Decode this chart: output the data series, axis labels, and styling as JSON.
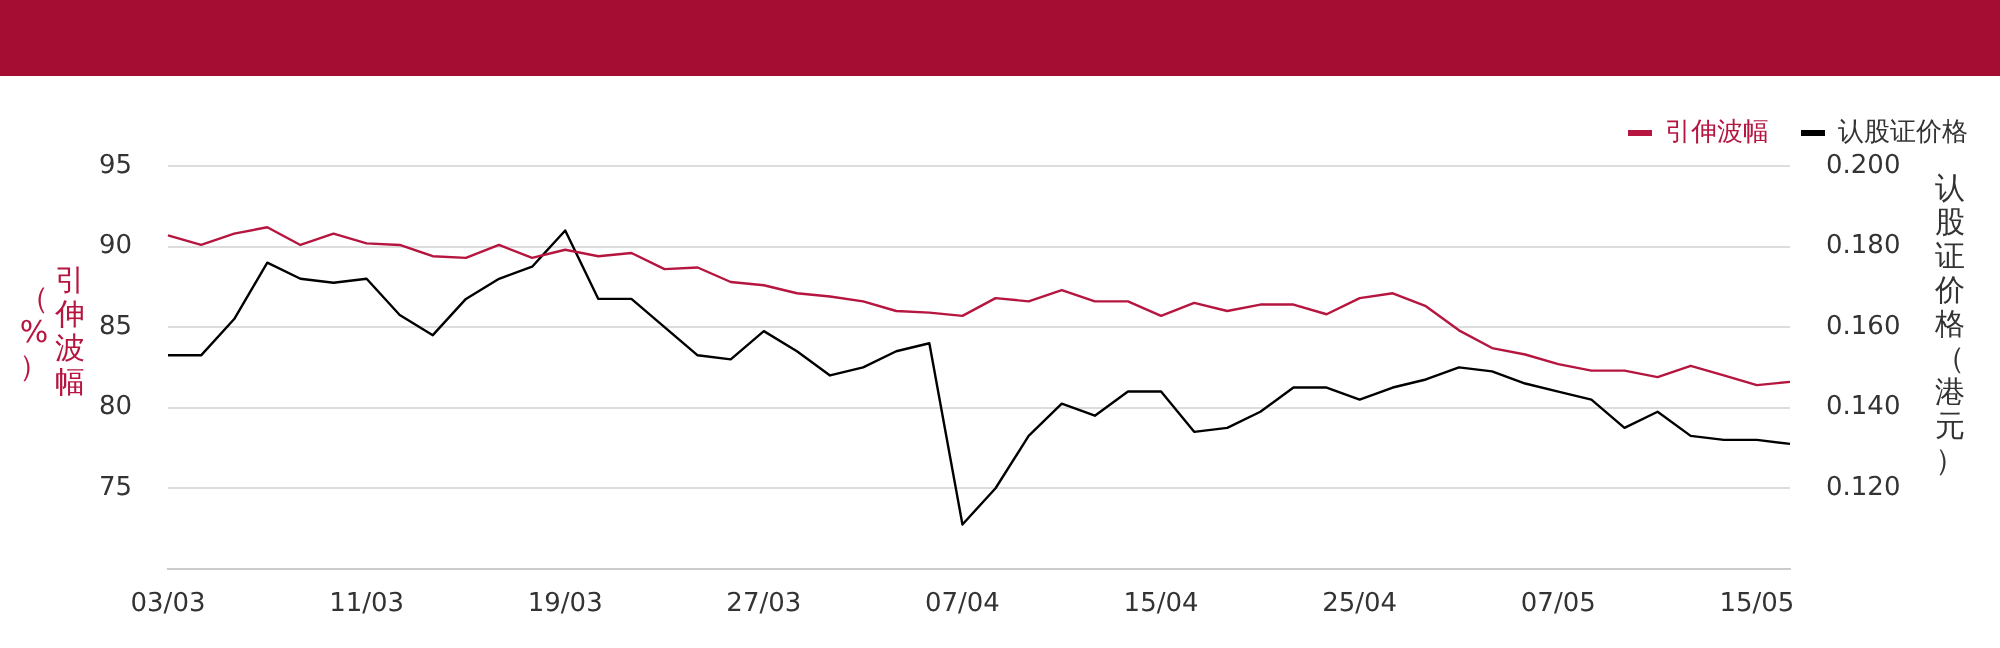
{
  "chart_data": {
    "type": "line",
    "ylabel": "引伸波幅（%）",
    "y2label": "认股证价格（港元）",
    "categories": [
      "03/03",
      null,
      null,
      null,
      null,
      null,
      "11/03",
      null,
      null,
      null,
      null,
      null,
      "19/03",
      null,
      null,
      null,
      null,
      null,
      "27/03",
      null,
      null,
      null,
      null,
      null,
      "07/04",
      null,
      null,
      null,
      null,
      null,
      "15/04",
      null,
      null,
      null,
      null,
      null,
      "25/04",
      null,
      null,
      null,
      null,
      null,
      "07/05",
      null,
      null,
      null,
      null,
      null,
      "15/05",
      null
    ],
    "series": [
      {
        "name": "引伸波幅",
        "color": "#b5153f",
        "values": [
          90.7,
          90.1,
          90.8,
          91.2,
          90.1,
          90.8,
          90.2,
          90.1,
          89.4,
          89.3,
          90.1,
          89.3,
          89.8,
          89.4,
          89.6,
          88.6,
          88.7,
          87.8,
          87.6,
          87.1,
          86.9,
          86.6,
          86.0,
          85.9,
          85.7,
          86.8,
          86.6,
          87.3,
          86.6,
          86.6,
          85.7,
          86.5,
          86.0,
          86.4,
          86.4,
          85.8,
          86.8,
          87.1,
          86.3,
          84.8,
          83.7,
          83.3,
          82.7,
          82.3,
          82.3,
          81.9,
          82.6,
          82.0,
          81.4,
          81.6
        ]
      },
      {
        "name": "认股证价格",
        "color": "#000000",
        "axis": "y2",
        "values": [
          0.153,
          0.153,
          0.162,
          0.176,
          0.172,
          0.171,
          0.172,
          0.163,
          0.158,
          0.167,
          0.172,
          0.175,
          0.184,
          0.167,
          0.167,
          0.16,
          0.153,
          0.152,
          0.159,
          0.154,
          0.148,
          0.15,
          0.154,
          0.156,
          0.111,
          0.12,
          0.133,
          0.141,
          0.138,
          0.144,
          0.144,
          0.134,
          0.135,
          0.139,
          0.145,
          0.145,
          0.142,
          0.145,
          0.147,
          0.15,
          0.149,
          0.146,
          0.144,
          0.142,
          0.135,
          0.139,
          0.133,
          0.132,
          0.132,
          0.131
        ]
      }
    ],
    "ylim": [
      70,
      95
    ],
    "yticks": [
      75,
      80,
      85,
      90,
      95
    ],
    "y2lim": [
      0.1,
      0.2
    ],
    "y2ticks": [
      {
        "value": 0.12,
        "label": "0.120"
      },
      {
        "value": 0.14,
        "label": "0.140"
      },
      {
        "value": 0.16,
        "label": "0.160"
      },
      {
        "value": 0.18,
        "label": "0.180"
      },
      {
        "value": 0.2,
        "label": "0.200"
      }
    ],
    "grid": "y",
    "legend": "top right",
    "marker": "none",
    "line_style": "solid"
  }
}
